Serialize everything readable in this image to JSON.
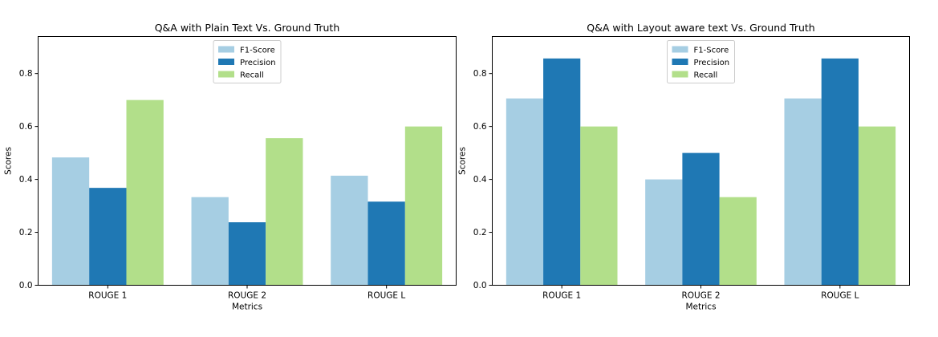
{
  "chart_data": [
    {
      "type": "bar",
      "title": "Q&A with Plain Text Vs. Ground Truth",
      "xlabel": "Metrics",
      "ylabel": "Scores",
      "ylim": [
        0,
        0.94
      ],
      "yticks": [
        0.0,
        0.2,
        0.4,
        0.6,
        0.8
      ],
      "ytick_labels": [
        "0.0",
        "0.2",
        "0.4",
        "0.6",
        "0.8"
      ],
      "categories": [
        "ROUGE 1",
        "ROUGE 2",
        "ROUGE L"
      ],
      "series": [
        {
          "name": "F1-Score",
          "color": "#a6cee3",
          "values": [
            0.483,
            0.333,
            0.414
          ]
        },
        {
          "name": "Precision",
          "color": "#1f78b4",
          "values": [
            0.368,
            0.238,
            0.316
          ]
        },
        {
          "name": "Recall",
          "color": "#b2df8a",
          "values": [
            0.7,
            0.556,
            0.6
          ]
        }
      ],
      "legend": "top-center",
      "grid": false
    },
    {
      "type": "bar",
      "title": "Q&A with Layout aware text Vs. Ground Truth",
      "xlabel": "Metrics",
      "ylabel": "Scores",
      "ylim": [
        0,
        0.94
      ],
      "yticks": [
        0.0,
        0.2,
        0.4,
        0.6,
        0.8
      ],
      "ytick_labels": [
        "0.0",
        "0.2",
        "0.4",
        "0.6",
        "0.8"
      ],
      "categories": [
        "ROUGE 1",
        "ROUGE 2",
        "ROUGE L"
      ],
      "series": [
        {
          "name": "F1-Score",
          "color": "#a6cee3",
          "values": [
            0.706,
            0.4,
            0.706
          ]
        },
        {
          "name": "Precision",
          "color": "#1f78b4",
          "values": [
            0.857,
            0.5,
            0.857
          ]
        },
        {
          "name": "Recall",
          "color": "#b2df8a",
          "values": [
            0.6,
            0.333,
            0.6
          ]
        }
      ],
      "legend": "top-center",
      "grid": false
    }
  ]
}
